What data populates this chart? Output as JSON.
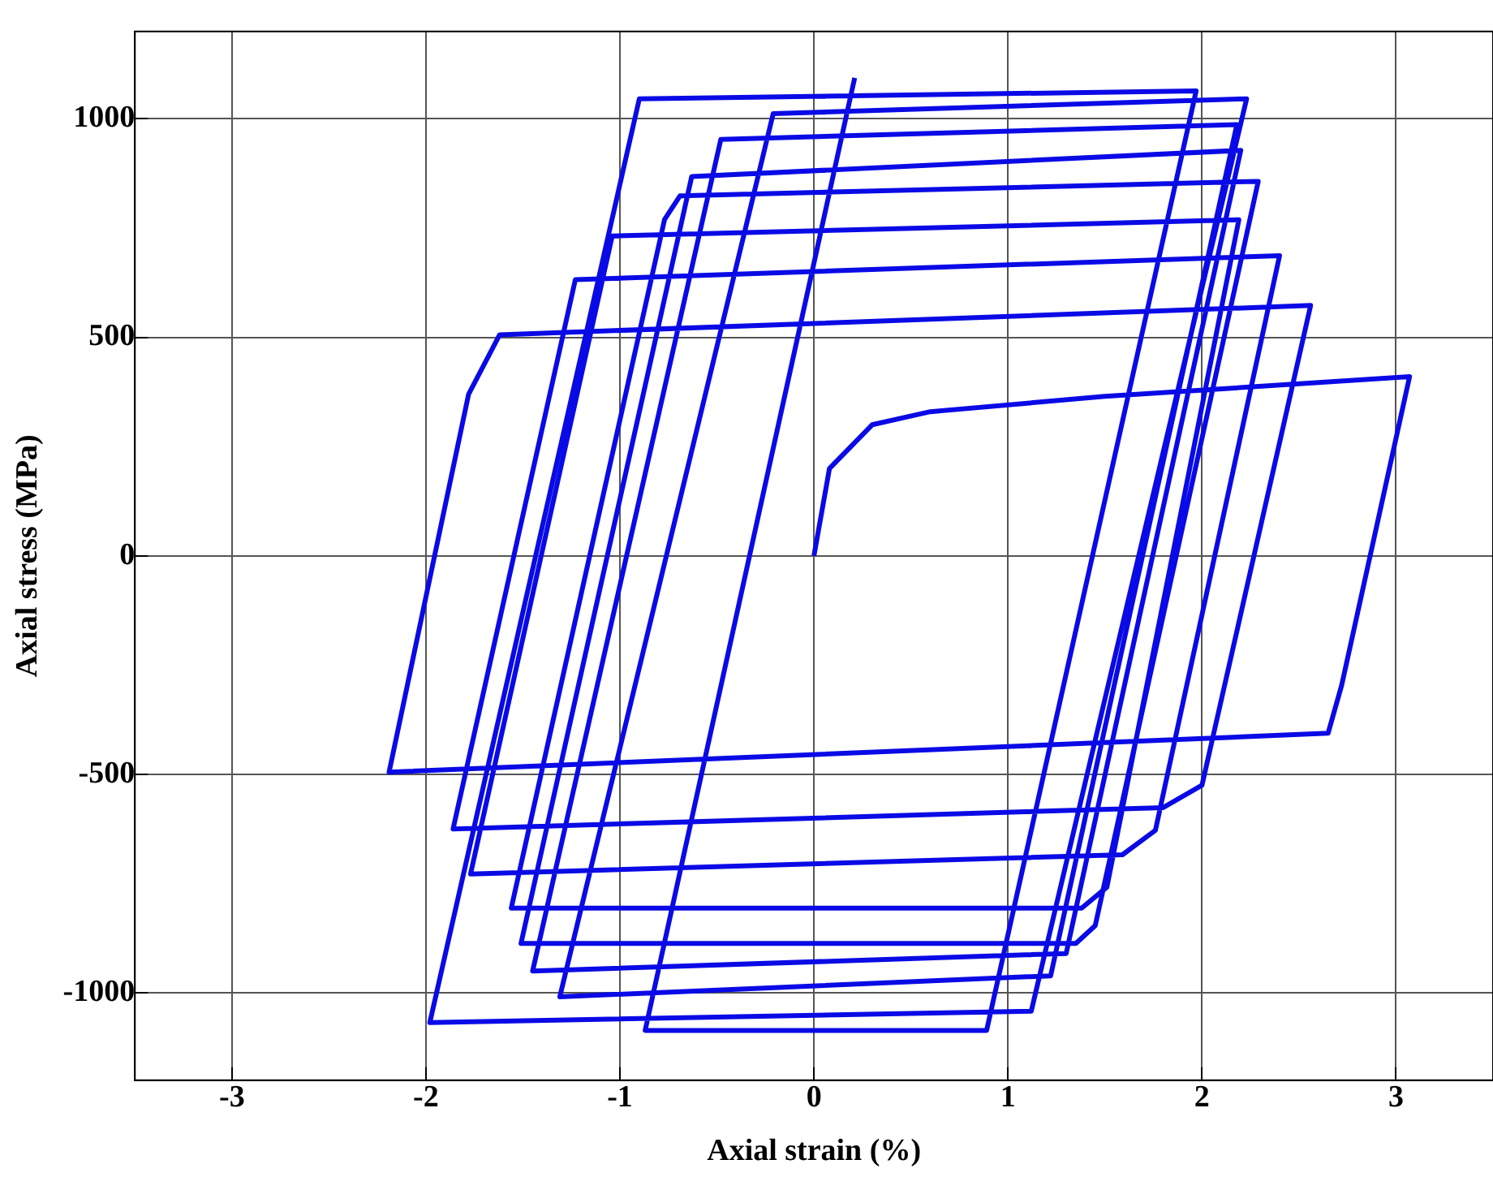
{
  "chart_data": {
    "type": "line",
    "xlabel": "Axial strain (%)",
    "ylabel": "Axial stress (MPa)",
    "xlim": [
      -3.5,
      3.5
    ],
    "ylim": [
      -1200,
      1200
    ],
    "xticks": [
      -3,
      -2,
      -1,
      0,
      1,
      2,
      3
    ],
    "yticks": [
      -1000,
      -500,
      0,
      500,
      1000
    ],
    "grid": true,
    "legend": false,
    "marker": "none",
    "line_style": "solid",
    "series": [
      {
        "color": "#0a0ae6",
        "x": [
          0,
          0.08,
          0.3,
          0.6,
          1.5,
          3.07,
          2.72,
          2.65,
          -2.19,
          -1.78,
          -1.62,
          2.56,
          2.0,
          1.8,
          -1.86,
          -1.23,
          2.4,
          1.76,
          1.59,
          -1.77,
          -1.04,
          2.19,
          1.51,
          1.38,
          -1.56,
          -0.77,
          -0.69,
          2.29,
          1.45,
          1.35,
          -1.51,
          -0.63,
          2.2,
          1.3,
          -1.45,
          -0.48,
          2.18,
          1.22,
          -1.31,
          -0.21,
          2.23,
          1.12,
          -1.98,
          -0.9,
          1.97,
          0.89,
          -0.87,
          0.21
        ],
        "values": [
          0,
          200,
          300,
          330,
          365,
          410,
          -296,
          -406,
          -495,
          370,
          506,
          573,
          -525,
          -576,
          -625,
          632,
          687,
          -628,
          -684,
          -728,
          732,
          769,
          -758,
          -806,
          -806,
          770,
          824,
          857,
          -846,
          -887,
          -887,
          868,
          928,
          -910,
          -950,
          953,
          987,
          -961,
          -1009,
          1012,
          1046,
          -1042,
          -1068,
          1046,
          1064,
          -1086,
          -1086,
          1094
        ]
      }
    ]
  }
}
